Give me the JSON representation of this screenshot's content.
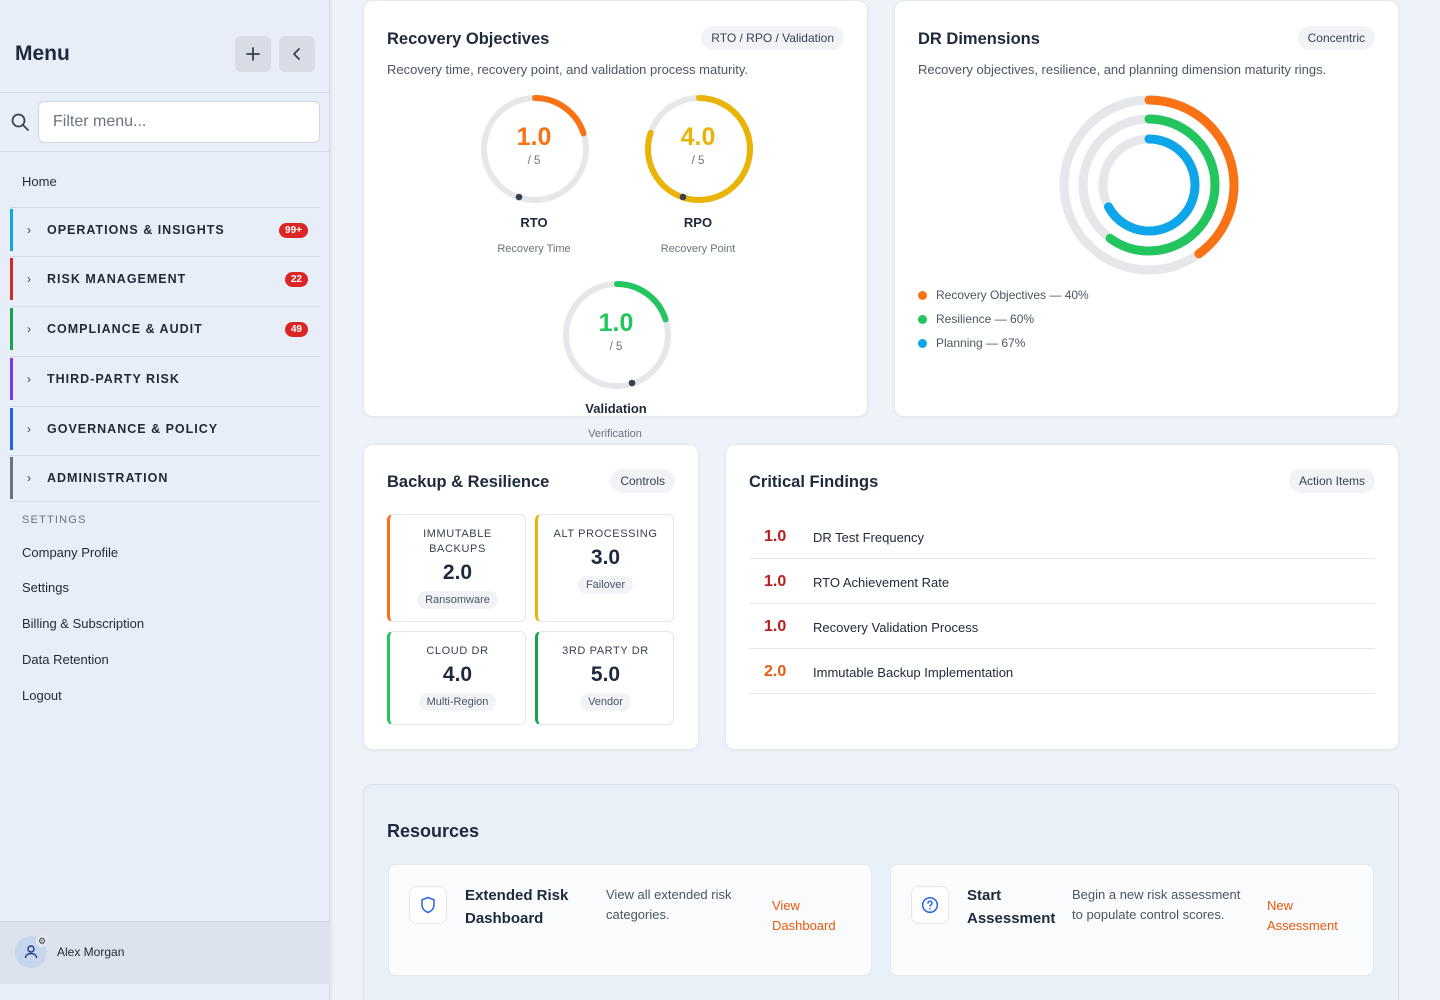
{
  "sidebar": {
    "title": "Menu",
    "add_icon": "plus-icon",
    "collapse_icon": "chevron-left-icon",
    "search_placeholder": "Filter menu...",
    "home": "Home",
    "sections": [
      {
        "label": "OPERATIONS & INSIGHTS",
        "badge": "99+",
        "color": "#0ea5e9"
      },
      {
        "label": "RISK MANAGEMENT",
        "badge": "22",
        "color": "#dc2626"
      },
      {
        "label": "COMPLIANCE & AUDIT",
        "badge": "49",
        "color": "#16a34a"
      },
      {
        "label": "THIRD-PARTY RISK",
        "badge": "",
        "color": "#7c3aed"
      },
      {
        "label": "GOVERNANCE & POLICY",
        "badge": "",
        "color": "#2563eb"
      },
      {
        "label": "ADMINISTRATION",
        "badge": "",
        "color": "#6b7280"
      }
    ],
    "settings_header": "SETTINGS",
    "settings_items": [
      "Company Profile",
      "Settings",
      "Billing & Subscription",
      "Data Retention",
      "Logout"
    ],
    "user_name": "Alex Morgan"
  },
  "recovery": {
    "title": "Recovery Objectives",
    "pill": "RTO / RPO / Validation",
    "subtitle": "Recovery time, recovery point, and validation process maturity.",
    "gauges": [
      {
        "value": "1.0",
        "denominator": "/ 5",
        "name": "RTO",
        "caption": "Recovery Time",
        "fraction": 0.2,
        "color": "#f97316"
      },
      {
        "value": "4.0",
        "denominator": "/ 5",
        "name": "RPO",
        "caption": "Recovery Point",
        "fraction": 0.8,
        "color": "#eab308"
      },
      {
        "value": "1.0",
        "denominator": "/ 5",
        "name": "Validation",
        "caption": "Verification",
        "fraction": 0.2,
        "color": "#22c55e"
      }
    ]
  },
  "dr": {
    "title": "DR Dimensions",
    "pill": "Concentric",
    "subtitle": "Recovery objectives, resilience, and planning dimension maturity rings.",
    "rings": [
      {
        "label": "Recovery Objectives — 40%",
        "fraction": 0.4,
        "color": "#f97316"
      },
      {
        "label": "Resilience — 60%",
        "fraction": 0.6,
        "color": "#22c55e"
      },
      {
        "label": "Planning — 67%",
        "fraction": 0.67,
        "color": "#0ea5e9"
      }
    ]
  },
  "backup": {
    "title": "Backup & Resilience",
    "pill": "Controls",
    "controls": [
      {
        "label": "IMMUTABLE BACKUPS",
        "value": "2.0",
        "tag": "Ransomware",
        "color": "#f97316"
      },
      {
        "label": "ALT PROCESSING",
        "value": "3.0",
        "tag": "Failover",
        "color": "#eab308"
      },
      {
        "label": "CLOUD DR",
        "value": "4.0",
        "tag": "Multi-Region",
        "color": "#22c55e"
      },
      {
        "label": "3RD PARTY DR",
        "value": "5.0",
        "tag": "Vendor",
        "color": "#16a34a"
      }
    ]
  },
  "findings": {
    "title": "Critical Findings",
    "pill": "Action Items",
    "items": [
      {
        "value": "1.0",
        "text": "DR Test Frequency",
        "color": "#b91c1c"
      },
      {
        "value": "1.0",
        "text": "RTO Achievement Rate",
        "color": "#b91c1c"
      },
      {
        "value": "1.0",
        "text": "Recovery Validation Process",
        "color": "#b91c1c"
      },
      {
        "value": "2.0",
        "text": "Immutable Backup Implementation",
        "color": "#ea580c"
      }
    ]
  },
  "resources": {
    "title": "Resources",
    "cards": [
      {
        "icon": "shield-icon",
        "title": "Extended Risk Dashboard",
        "desc": "View all extended risk categories.",
        "link": "View Dashboard"
      },
      {
        "icon": "question-circle-icon",
        "title": "Start Assessment",
        "desc": "Begin a new risk assessment to populate control scores.",
        "link": "New Assessment"
      }
    ]
  }
}
